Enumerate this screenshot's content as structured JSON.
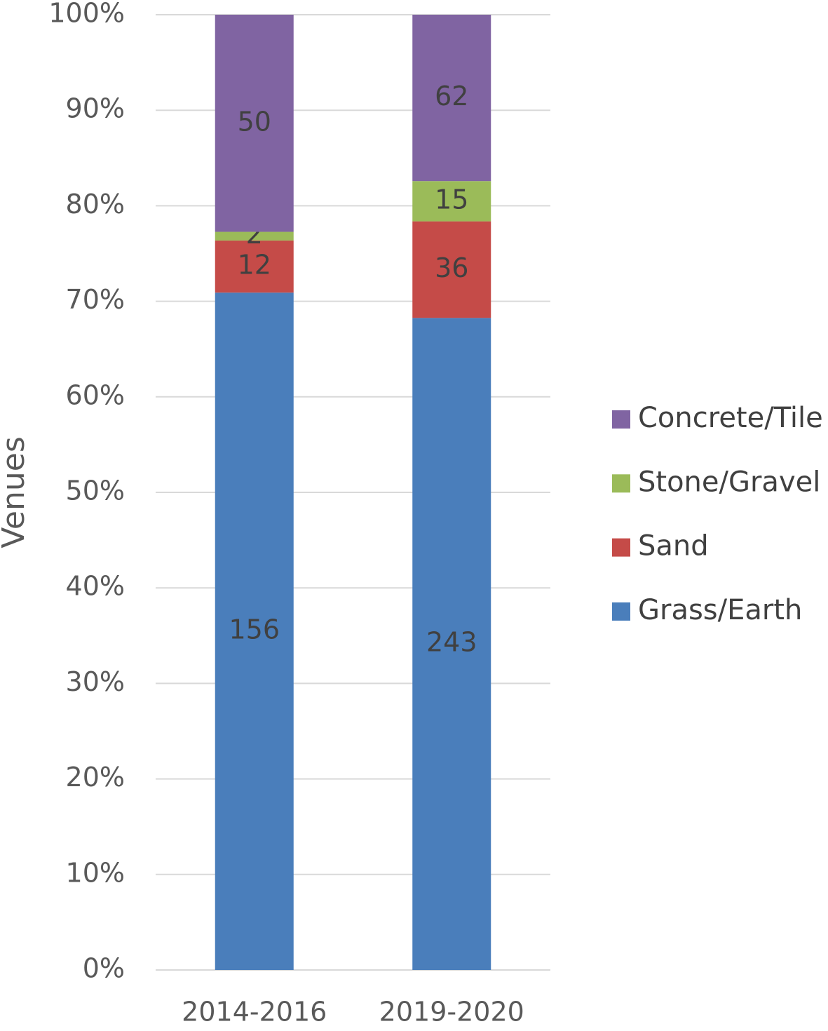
{
  "chart_data": {
    "type": "bar",
    "stacking": "percent",
    "y_label": "Venues",
    "categories": [
      "2014-2016",
      "2019-2020"
    ],
    "series": [
      {
        "name": "Grass/Earth",
        "color": "#4a7ebb",
        "values": [
          156,
          243
        ]
      },
      {
        "name": "Sand",
        "color": "#c54b48",
        "values": [
          12,
          36
        ]
      },
      {
        "name": "Stone/Gravel",
        "color": "#9bbb59",
        "values": [
          2,
          15
        ]
      },
      {
        "name": "Concrete/Tile",
        "color": "#8064a2",
        "values": [
          50,
          62
        ]
      }
    ],
    "ylim": [
      0,
      100
    ],
    "yticks": [
      {
        "value": 0,
        "label": "0%"
      },
      {
        "value": 10,
        "label": "10%"
      },
      {
        "value": 20,
        "label": "20%"
      },
      {
        "value": 30,
        "label": "30%"
      },
      {
        "value": 40,
        "label": "40%"
      },
      {
        "value": 50,
        "label": "50%"
      },
      {
        "value": 60,
        "label": "60%"
      },
      {
        "value": 70,
        "label": "70%"
      },
      {
        "value": 80,
        "label": "80%"
      },
      {
        "value": 90,
        "label": "90%"
      },
      {
        "value": 100,
        "label": "100%"
      }
    ],
    "grid": true,
    "legend": "right"
  }
}
